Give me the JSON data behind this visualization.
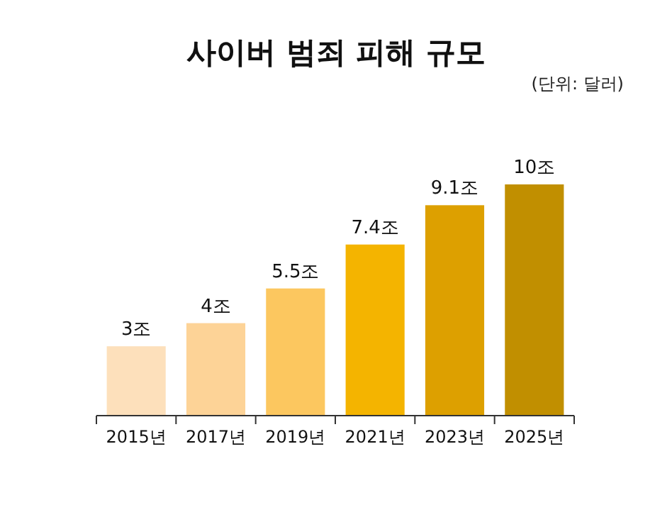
{
  "chart_data": {
    "type": "bar",
    "title": "사이버 범죄 피해 규모",
    "subtitle": "(단위: 달러)",
    "categories": [
      "2015년",
      "2017년",
      "2019년",
      "2021년",
      "2023년",
      "2025년"
    ],
    "values": [
      3,
      4,
      5.5,
      7.4,
      9.1,
      10
    ],
    "value_labels": [
      "3조",
      "4조",
      "5.5조",
      "7.4조",
      "9.1조",
      "10조"
    ],
    "colors": [
      "#fde0bb",
      "#fdd397",
      "#fcc75f",
      "#f4b400",
      "#dda000",
      "#c18f00"
    ]
  }
}
